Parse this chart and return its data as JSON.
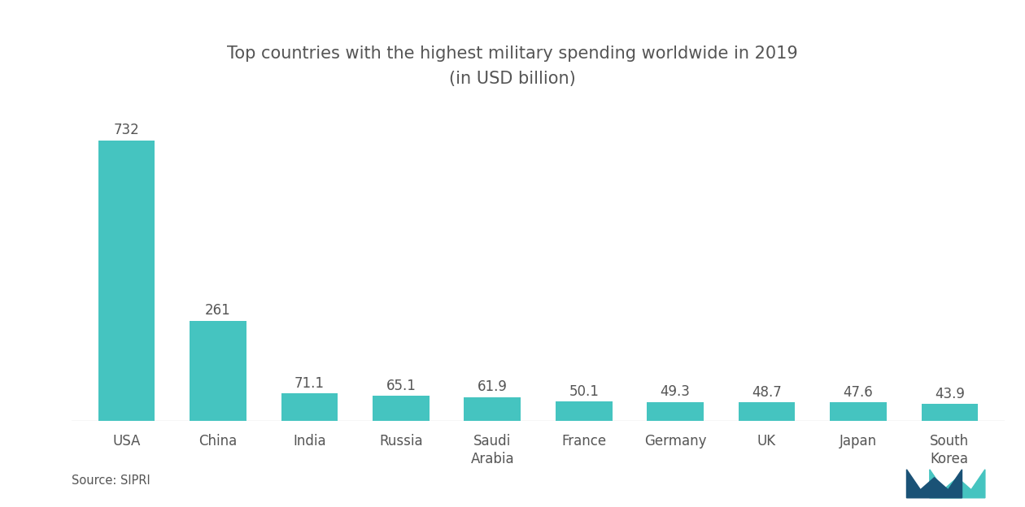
{
  "title_line1": "Top countries with the highest military spending worldwide in 2019",
  "title_line2": "(in USD billion)",
  "categories": [
    "USA",
    "China",
    "India",
    "Russia",
    "Saudi\nArabia",
    "France",
    "Germany",
    "UK",
    "Japan",
    "South\nKorea"
  ],
  "values": [
    732,
    261,
    71.1,
    65.1,
    61.9,
    50.1,
    49.3,
    48.7,
    47.6,
    43.9
  ],
  "bar_color": "#45c4c0",
  "background_color": "#ffffff",
  "source_text": "Source: SIPRI",
  "ylim": [
    0,
    820
  ],
  "label_fontsize": 12,
  "title_fontsize": 15,
  "tick_fontsize": 12,
  "source_fontsize": 10.5,
  "bar_width": 0.62
}
